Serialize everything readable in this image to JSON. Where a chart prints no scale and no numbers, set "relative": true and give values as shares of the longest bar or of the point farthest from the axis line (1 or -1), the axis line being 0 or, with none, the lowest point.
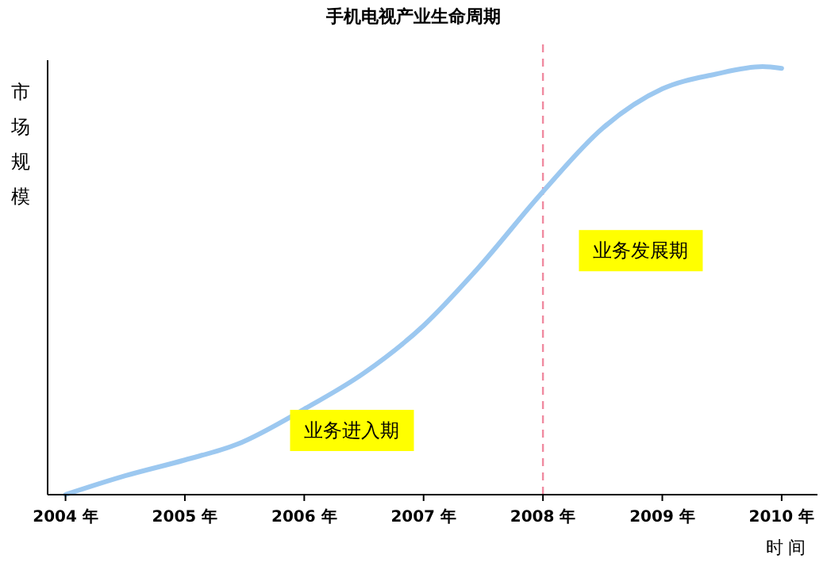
{
  "chart_data": {
    "type": "line",
    "title": "手机电视产业生命周期",
    "xlabel": "时 间",
    "ylabel": "市场规模",
    "relative": true,
    "x": [
      2004,
      2004.5,
      2005,
      2005.44,
      2006,
      2006.5,
      2007,
      2007.44,
      2008,
      2008.5,
      2009,
      2009.44,
      2009.84,
      2010
    ],
    "series": [
      {
        "color": "#9cc8f0",
        "values": [
          0,
          0.044,
          0.081,
          0.118,
          0.2,
          0.284,
          0.395,
          0.524,
          0.708,
          0.856,
          0.948,
          0.982,
          1,
          0.996
        ]
      }
    ],
    "xlim": [
      2003.85,
      2010.3
    ],
    "xticks": [
      {
        "value": 2004,
        "label": "2004 年"
      },
      {
        "value": 2005,
        "label": "2005 年"
      },
      {
        "value": 2006,
        "label": "2006 年"
      },
      {
        "value": 2007,
        "label": "2007 年"
      },
      {
        "value": 2008,
        "label": "2008 年"
      },
      {
        "value": 2009,
        "label": "2009 年"
      },
      {
        "value": 2010,
        "label": "2010 年"
      }
    ],
    "ref_lines": [
      {
        "axis": "x",
        "value": 2008,
        "color": "#f08aa0",
        "line_style": "dashed"
      }
    ],
    "annotations": [
      "业务进入期",
      "业务发展期"
    ],
    "grid": false,
    "marker": "none",
    "line_style": "solid"
  }
}
